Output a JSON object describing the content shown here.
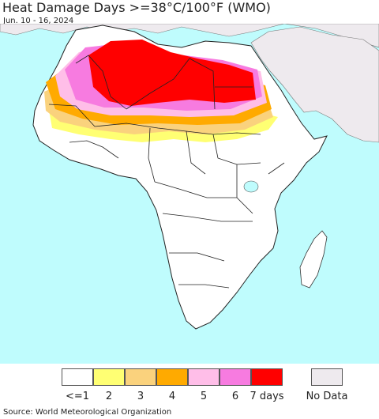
{
  "title": "Heat Damage Days >=38°C/100°F (WMO)",
  "date_range": "Jun. 10 - 16, 2024",
  "source": "Source: World Meteorological Organization",
  "legend": {
    "items": [
      {
        "label": "<=1",
        "color": "#ffffff"
      },
      {
        "label": "2",
        "color": "#ffff73"
      },
      {
        "label": "3",
        "color": "#fad27d"
      },
      {
        "label": "4",
        "color": "#ffaa00"
      },
      {
        "label": "5",
        "color": "#ffbee8"
      },
      {
        "label": "6",
        "color": "#f77be0"
      },
      {
        "label": "7 days",
        "color": "#ff0000"
      }
    ],
    "no_data": {
      "label": "No Data",
      "color": "#eeeaee"
    }
  },
  "colors": {
    "ocean": "#bffcfd",
    "land": "#ffffff",
    "no_data_land": "#eeeaee",
    "border": "#222222"
  }
}
